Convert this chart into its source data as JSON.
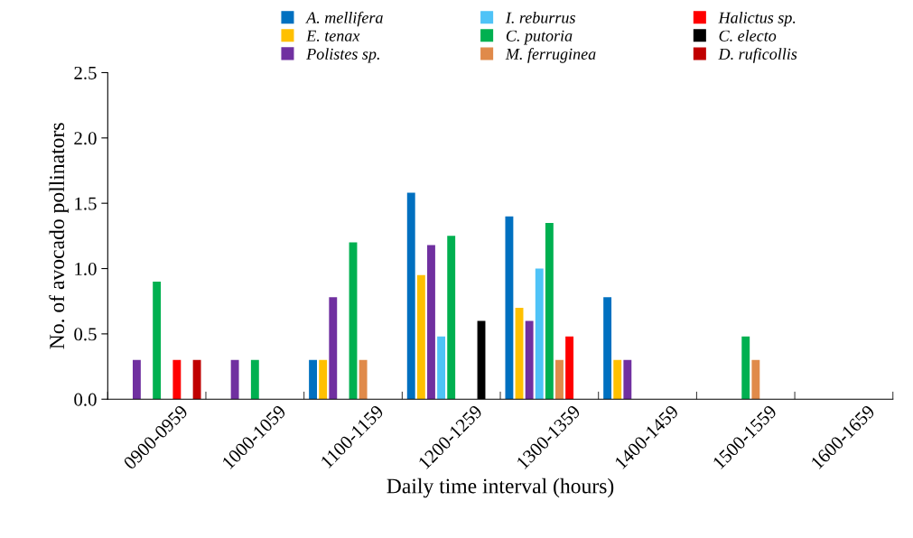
{
  "chart_data": {
    "type": "bar",
    "xlabel": "Daily time interval (hours)",
    "ylabel": "No. of avocado pollinators",
    "categories": [
      "0900-0959",
      "1000-1059",
      "1100-1159",
      "1200-1259",
      "1300-1359",
      "1400-1459",
      "1500-1559",
      "1600-1659"
    ],
    "series": [
      {
        "name": "A. mellifera",
        "color": "#0070c0",
        "values": [
          null,
          null,
          0.3,
          1.58,
          1.4,
          0.78,
          null,
          null
        ]
      },
      {
        "name": "E. tenax",
        "color": "#ffc000",
        "values": [
          null,
          null,
          0.3,
          0.95,
          0.7,
          0.3,
          null,
          null
        ]
      },
      {
        "name": "Polistes sp.",
        "color": "#7030a0",
        "values": [
          0.3,
          0.3,
          0.78,
          1.18,
          0.6,
          0.3,
          null,
          null
        ]
      },
      {
        "name": "I. reburrus",
        "color": "#4fc3f7",
        "values": [
          null,
          null,
          null,
          0.48,
          1.0,
          null,
          null,
          null
        ]
      },
      {
        "name": "C. putoria",
        "color": "#00b050",
        "values": [
          0.9,
          0.3,
          1.2,
          1.25,
          1.35,
          null,
          0.48,
          null
        ]
      },
      {
        "name": "M. ferruginea",
        "color": "#e08a4a",
        "values": [
          null,
          null,
          0.3,
          null,
          0.3,
          null,
          0.3,
          null
        ]
      },
      {
        "name": "Halictus sp.",
        "color": "#ff0000",
        "values": [
          0.3,
          null,
          null,
          null,
          0.48,
          null,
          null,
          null
        ]
      },
      {
        "name": "C. electo",
        "color": "#000000",
        "values": [
          null,
          null,
          null,
          0.6,
          null,
          null,
          null,
          null
        ]
      },
      {
        "name": "D. ruficollis",
        "color": "#c00000",
        "values": [
          0.3,
          null,
          null,
          null,
          null,
          null,
          null,
          null
        ]
      }
    ],
    "ylim": [
      0,
      2.5
    ],
    "yticks": [
      {
        "value": 0,
        "label": "0.0"
      },
      {
        "value": 0.5,
        "label": "0.5"
      },
      {
        "value": 1.0,
        "label": "1.0"
      },
      {
        "value": 1.5,
        "label": "1.5"
      },
      {
        "value": 2.0,
        "label": "2.0"
      },
      {
        "value": 2.5,
        "label": "2.5"
      }
    ],
    "legend": "top",
    "grid": false
  }
}
